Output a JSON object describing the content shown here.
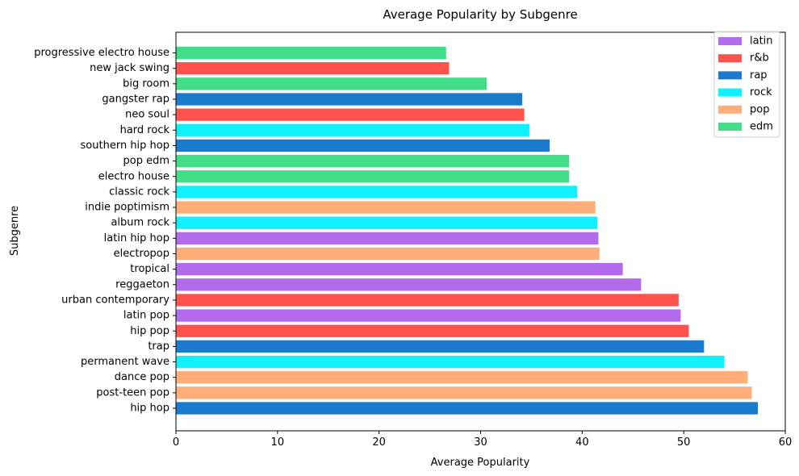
{
  "chart_data": {
    "type": "bar",
    "orientation": "horizontal",
    "title": "Average Popularity by Subgenre",
    "xlabel": "Average Popularity",
    "ylabel": "Subgenre",
    "xlim": [
      0,
      60
    ],
    "xticks": [
      "0",
      "10",
      "20",
      "30",
      "40",
      "50",
      "60"
    ],
    "grid": false,
    "legend_position": "top-right",
    "legend": [
      {
        "name": "latin",
        "color": "#b26bea"
      },
      {
        "name": "r&b",
        "color": "#ff524c"
      },
      {
        "name": "rap",
        "color": "#1a7acc"
      },
      {
        "name": "rock",
        "color": "#10f0ff"
      },
      {
        "name": "pop",
        "color": "#ffae7a"
      },
      {
        "name": "edm",
        "color": "#42dd89"
      }
    ],
    "bars": [
      {
        "category": "hip hop",
        "value": 57.3,
        "genre": "rap"
      },
      {
        "category": "post-teen pop",
        "value": 56.7,
        "genre": "pop"
      },
      {
        "category": "dance pop",
        "value": 56.3,
        "genre": "pop"
      },
      {
        "category": "permanent wave",
        "value": 54.0,
        "genre": "rock"
      },
      {
        "category": "trap",
        "value": 52.0,
        "genre": "rap"
      },
      {
        "category": "hip pop",
        "value": 50.5,
        "genre": "r&b"
      },
      {
        "category": "latin pop",
        "value": 49.7,
        "genre": "latin"
      },
      {
        "category": "urban contemporary",
        "value": 49.5,
        "genre": "r&b"
      },
      {
        "category": "reggaeton",
        "value": 45.8,
        "genre": "latin"
      },
      {
        "category": "tropical",
        "value": 44.0,
        "genre": "latin"
      },
      {
        "category": "electropop",
        "value": 41.7,
        "genre": "pop"
      },
      {
        "category": "latin hip hop",
        "value": 41.6,
        "genre": "latin"
      },
      {
        "category": "album rock",
        "value": 41.5,
        "genre": "rock"
      },
      {
        "category": "indie poptimism",
        "value": 41.3,
        "genre": "pop"
      },
      {
        "category": "classic rock",
        "value": 39.5,
        "genre": "rock"
      },
      {
        "category": "electro house",
        "value": 38.7,
        "genre": "edm"
      },
      {
        "category": "pop edm",
        "value": 38.7,
        "genre": "edm"
      },
      {
        "category": "southern hip hop",
        "value": 36.8,
        "genre": "rap"
      },
      {
        "category": "hard rock",
        "value": 34.8,
        "genre": "rock"
      },
      {
        "category": "neo soul",
        "value": 34.3,
        "genre": "r&b"
      },
      {
        "category": "gangster rap",
        "value": 34.1,
        "genre": "rap"
      },
      {
        "category": "big room",
        "value": 30.6,
        "genre": "edm"
      },
      {
        "category": "new jack swing",
        "value": 26.9,
        "genre": "r&b"
      },
      {
        "category": "progressive electro house",
        "value": 26.6,
        "genre": "edm"
      }
    ]
  }
}
